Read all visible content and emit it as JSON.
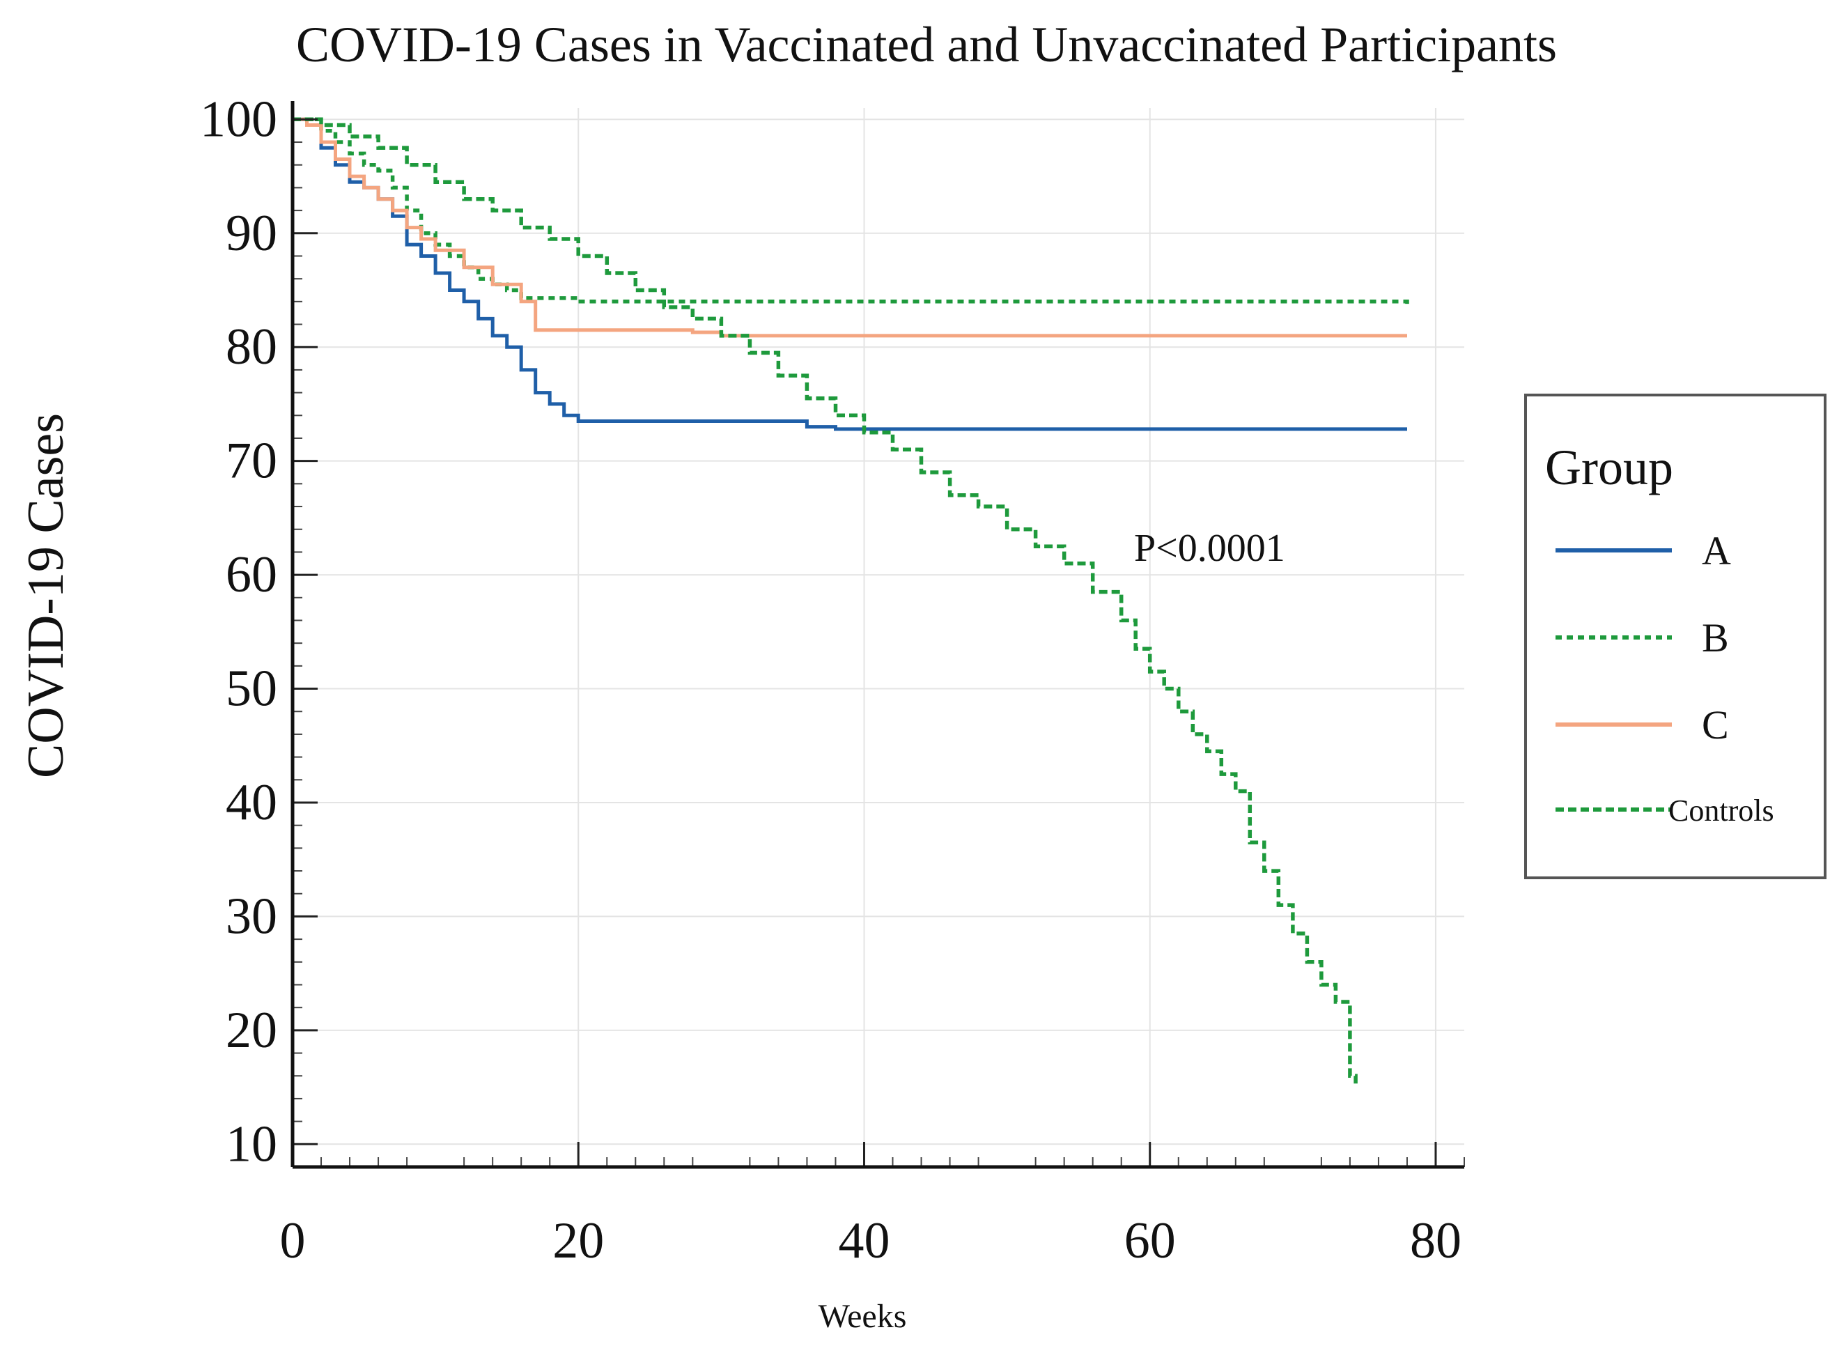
{
  "chart_data": {
    "type": "line",
    "title": "COVID-19 Cases in Vaccinated and Unvaccinated Participants",
    "xlabel": "Weeks",
    "ylabel": "COVID-19 Cases",
    "xlim": [
      0,
      82
    ],
    "ylim": [
      8,
      101
    ],
    "x_ticks": [
      0,
      20,
      40,
      60,
      80
    ],
    "y_ticks": [
      10,
      20,
      30,
      40,
      50,
      60,
      70,
      80,
      90,
      100
    ],
    "grid": true,
    "annotation": "P<0.0001",
    "legend": {
      "title": "Group",
      "position": "right"
    },
    "series": [
      {
        "name": "A",
        "color": "#1f5fa8",
        "style": "solid",
        "step": true,
        "x": [
          0,
          1,
          2,
          3,
          4,
          5,
          6,
          7,
          8,
          9,
          10,
          11,
          12,
          13,
          14,
          15,
          16,
          17,
          18,
          19,
          20,
          32,
          36,
          38,
          78
        ],
        "y": [
          100,
          99.5,
          97.5,
          96,
          94.5,
          94,
          93,
          91.5,
          89,
          88,
          86.5,
          85,
          84,
          82.5,
          81,
          80,
          78,
          76,
          75,
          74,
          73.5,
          73.5,
          73,
          72.8,
          72.8
        ]
      },
      {
        "name": "B",
        "color": "#1e9a3c",
        "style": "dotted",
        "step": true,
        "x": [
          0,
          2,
          3,
          4,
          5,
          6,
          7,
          8,
          9,
          10,
          11,
          12,
          13,
          14,
          15,
          16,
          20,
          78
        ],
        "y": [
          100,
          99,
          98,
          97,
          96,
          95.5,
          94,
          92,
          90,
          89,
          88,
          87,
          86,
          85.5,
          85,
          84.3,
          84,
          83.8
        ]
      },
      {
        "name": "C",
        "color": "#f4a580",
        "style": "solid",
        "step": true,
        "x": [
          0,
          1,
          2,
          3,
          4,
          5,
          6,
          7,
          8,
          9,
          10,
          12,
          14,
          16,
          17,
          20,
          28,
          30,
          78
        ],
        "y": [
          100,
          99.5,
          98,
          96.5,
          95,
          94,
          93,
          92,
          90.5,
          89.5,
          88.5,
          87,
          85.5,
          84,
          81.5,
          81.5,
          81.3,
          81,
          81
        ]
      },
      {
        "name": "Controls",
        "color": "#1e9a3c",
        "style": "dashed",
        "step": true,
        "x": [
          0,
          2,
          4,
          6,
          8,
          10,
          12,
          14,
          16,
          18,
          20,
          22,
          24,
          26,
          28,
          30,
          32,
          34,
          36,
          38,
          40,
          42,
          44,
          46,
          48,
          50,
          52,
          54,
          56,
          58,
          59,
          60,
          61,
          62,
          63,
          64,
          65,
          66,
          67,
          68,
          69,
          70,
          71,
          72,
          73,
          74,
          74.4
        ],
        "y": [
          100,
          99.5,
          98.5,
          97.5,
          96,
          94.5,
          93,
          92,
          90.5,
          89.5,
          88,
          86.5,
          85,
          83.5,
          82.5,
          81,
          79.5,
          77.5,
          75.5,
          74,
          72.5,
          71,
          69,
          67,
          66,
          64,
          62.5,
          61,
          58.5,
          56,
          53.5,
          51.5,
          50,
          48,
          46,
          44.5,
          42.5,
          41,
          36.5,
          34,
          31,
          28.5,
          26,
          24,
          22.5,
          16,
          15
        ]
      }
    ]
  }
}
